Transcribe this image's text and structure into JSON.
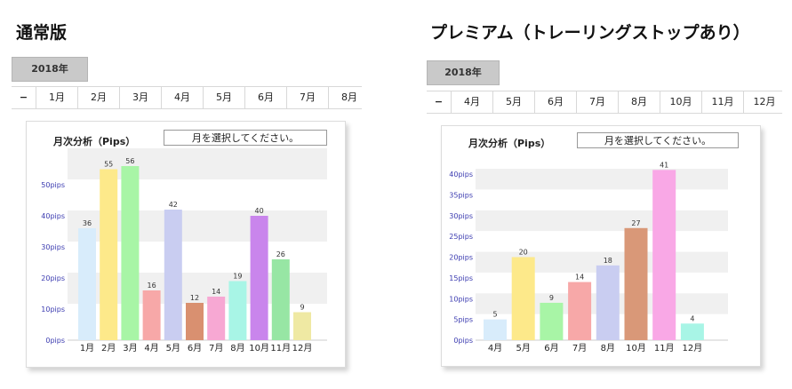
{
  "panels": [
    {
      "title": "通常版",
      "year_tab": "2018年",
      "tabs": [
        "−",
        "1月",
        "2月",
        "3月",
        "4月",
        "5月",
        "6月",
        "7月",
        "8月"
      ],
      "chart_title": "月次分析（Pips）",
      "select_placeholder": "月を選択してください。",
      "chart_data": {
        "type": "bar",
        "categories": [
          "1月",
          "2月",
          "3月",
          "4月",
          "5月",
          "6月",
          "7月",
          "8月",
          "10月",
          "11月",
          "12月"
        ],
        "values": [
          36,
          55,
          56,
          16,
          42,
          12,
          14,
          19,
          40,
          26,
          9
        ],
        "y_ticks": [
          "0pips",
          "10pips",
          "20pips",
          "30pips",
          "40pips",
          "50pips"
        ],
        "ylim": [
          0,
          60
        ],
        "colors": [
          "#d8ecfb",
          "#fde98a",
          "#a8f5a6",
          "#f7a8a8",
          "#c9cdf1",
          "#d99070",
          "#f7a8d3",
          "#a8f5e6",
          "#c985ec",
          "#97e6a4",
          "#efe9a3"
        ]
      }
    },
    {
      "title": "プレミアム（トレーリングストップあり）",
      "year_tab": "2018年",
      "tabs": [
        "−",
        "4月",
        "5月",
        "6月",
        "7月",
        "8月",
        "10月",
        "11月",
        "12月"
      ],
      "chart_title": "月次分析（Pips）",
      "select_placeholder": "月を選択してください。",
      "chart_data": {
        "type": "bar",
        "categories": [
          "4月",
          "5月",
          "6月",
          "7月",
          "8月",
          "10月",
          "11月",
          "12月"
        ],
        "values": [
          5,
          20,
          9,
          14,
          18,
          27,
          41,
          4
        ],
        "y_ticks": [
          "0pips",
          "5pips",
          "10pips",
          "15pips",
          "20pips",
          "25pips",
          "30pips",
          "35pips",
          "40pips"
        ],
        "ylim": [
          0,
          43
        ],
        "colors": [
          "#d8ecfb",
          "#fde98a",
          "#a8f5a6",
          "#f7a8a8",
          "#c9cdf1",
          "#d99878",
          "#f9a8e6",
          "#a8f5e6"
        ]
      }
    }
  ]
}
